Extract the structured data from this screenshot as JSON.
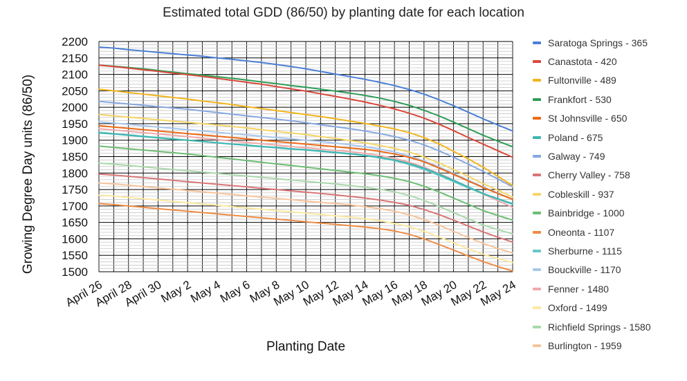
{
  "chart_data": {
    "type": "line",
    "title": "Estimated total GDD (86/50) by planting date for each location",
    "xlabel": "Planting Date",
    "ylabel": "Growing Degree Day units (86/50)",
    "ylim": [
      1500,
      2200
    ],
    "y_ticks": [
      1500,
      1550,
      1600,
      1650,
      1700,
      1750,
      1800,
      1850,
      1900,
      1950,
      2000,
      2050,
      2100,
      2150,
      2200
    ],
    "x": [
      "April 26",
      "April 27",
      "April 28",
      "April 29",
      "April 30",
      "May 1",
      "May 2",
      "May 3",
      "May 4",
      "May 5",
      "May 6",
      "May 7",
      "May 8",
      "May 9",
      "May 10",
      "May 11",
      "May 12",
      "May 13",
      "May 14",
      "May 15",
      "May 16",
      "May 17",
      "May 18",
      "May 19",
      "May 20",
      "May 21",
      "May 22",
      "May 23",
      "May 24"
    ],
    "x_tick_labels": [
      "April 26",
      "April 28",
      "April 30",
      "May 2",
      "May 4",
      "May 6",
      "May 8",
      "May 10",
      "May 12",
      "May 14",
      "May 16",
      "May 18",
      "May 20",
      "May 22",
      "May 24"
    ],
    "grid": true,
    "legend_position": "right",
    "series": [
      {
        "name": "Saratoga Springs - 365",
        "color": "#4a7fd6",
        "values": [
          2183,
          2180,
          2175,
          2171,
          2167,
          2163,
          2159,
          2155,
          2150,
          2146,
          2141,
          2136,
          2130,
          2124,
          2117,
          2109,
          2101,
          2093,
          2085,
          2076,
          2066,
          2054,
          2040,
          2023,
          2005,
          1985,
          1965,
          1946,
          1928
        ]
      },
      {
        "name": "Canastota - 420",
        "color": "#d9483b",
        "values": [
          2128,
          2124,
          2119,
          2114,
          2109,
          2104,
          2099,
          2094,
          2088,
          2082,
          2076,
          2070,
          2063,
          2056,
          2049,
          2041,
          2033,
          2025,
          2016,
          2006,
          1995,
          1982,
          1967,
          1949,
          1929,
          1908,
          1888,
          1868,
          1848
        ]
      },
      {
        "name": "Fultonville - 489",
        "color": "#f2b51c",
        "values": [
          2055,
          2050,
          2045,
          2040,
          2035,
          2030,
          2025,
          2019,
          2014,
          2008,
          2002,
          1996,
          1990,
          1984,
          1978,
          1972,
          1965,
          1958,
          1951,
          1943,
          1934,
          1923,
          1908,
          1889,
          1866,
          1843,
          1818,
          1790,
          1762
        ]
      },
      {
        "name": "Frankfort - 530",
        "color": "#2e9c56",
        "values": [
          2128,
          2125,
          2121,
          2117,
          2112,
          2107,
          2102,
          2098,
          2093,
          2088,
          2083,
          2077,
          2072,
          2066,
          2061,
          2055,
          2049,
          2043,
          2036,
          2028,
          2018,
          2006,
          1991,
          1974,
          1955,
          1935,
          1915,
          1897,
          1880
        ]
      },
      {
        "name": "St Johnsville - 650",
        "color": "#ec6a17",
        "values": [
          1944,
          1940,
          1936,
          1932,
          1928,
          1924,
          1920,
          1916,
          1912,
          1908,
          1904,
          1900,
          1896,
          1892,
          1888,
          1884,
          1880,
          1876,
          1872,
          1866,
          1858,
          1848,
          1834,
          1816,
          1796,
          1776,
          1756,
          1738,
          1720
        ]
      },
      {
        "name": "Poland - 675",
        "color": "#3db6b0",
        "values": [
          1922,
          1919,
          1915,
          1911,
          1907,
          1903,
          1900,
          1896,
          1892,
          1888,
          1885,
          1881,
          1878,
          1874,
          1871,
          1867,
          1863,
          1859,
          1854,
          1848,
          1840,
          1829,
          1815,
          1797,
          1778,
          1758,
          1738,
          1722,
          1707
        ]
      },
      {
        "name": "Galway - 749",
        "color": "#85a8e0",
        "values": [
          2018,
          2014,
          2010,
          2006,
          2002,
          1998,
          1994,
          1989,
          1984,
          1979,
          1974,
          1969,
          1964,
          1959,
          1953,
          1947,
          1941,
          1935,
          1928,
          1920,
          1911,
          1900,
          1886,
          1868,
          1848,
          1827,
          1805,
          1782,
          1758
        ]
      },
      {
        "name": "Cherry Valley - 758",
        "color": "#d97575",
        "values": [
          1797,
          1794,
          1790,
          1786,
          1782,
          1778,
          1774,
          1770,
          1766,
          1762,
          1758,
          1754,
          1750,
          1746,
          1742,
          1738,
          1734,
          1729,
          1724,
          1718,
          1711,
          1702,
          1689,
          1674,
          1657,
          1639,
          1621,
          1605,
          1590
        ]
      },
      {
        "name": "Cobleskill - 937",
        "color": "#f5d565",
        "values": [
          1978,
          1974,
          1970,
          1966,
          1962,
          1958,
          1954,
          1950,
          1946,
          1942,
          1937,
          1932,
          1927,
          1922,
          1917,
          1911,
          1905,
          1899,
          1892,
          1884,
          1875,
          1864,
          1849,
          1831,
          1811,
          1790,
          1768,
          1748,
          1727
        ]
      },
      {
        "name": "Bainbridge - 1000",
        "color": "#6cbd73",
        "values": [
          1882,
          1878,
          1874,
          1870,
          1866,
          1862,
          1858,
          1853,
          1848,
          1843,
          1838,
          1833,
          1828,
          1823,
          1818,
          1813,
          1808,
          1803,
          1798,
          1792,
          1784,
          1774,
          1760,
          1743,
          1724,
          1705,
          1686,
          1671,
          1657
        ]
      },
      {
        "name": "Oneonta - 1107",
        "color": "#ef8c45",
        "values": [
          1707,
          1704,
          1700,
          1696,
          1692,
          1688,
          1684,
          1680,
          1676,
          1672,
          1668,
          1664,
          1660,
          1656,
          1652,
          1648,
          1644,
          1640,
          1636,
          1631,
          1624,
          1614,
          1600,
          1583,
          1566,
          1548,
          1531,
          1516,
          1502
        ]
      },
      {
        "name": "Sherburne - 1115",
        "color": "#68c6c7",
        "values": [
          1924,
          1920,
          1916,
          1912,
          1908,
          1904,
          1900,
          1896,
          1892,
          1888,
          1884,
          1880,
          1877,
          1873,
          1870,
          1866,
          1862,
          1858,
          1853,
          1846,
          1838,
          1826,
          1811,
          1793,
          1774,
          1755,
          1737,
          1721,
          1705
        ]
      },
      {
        "name": "Bouckville - 1170",
        "color": "#a9c7ec",
        "values": [
          1956,
          1952,
          1948,
          1944,
          1940,
          1936,
          1932,
          1928,
          1924,
          1920,
          1916,
          1912,
          1908,
          1904,
          1900,
          1896,
          1891,
          1886,
          1880,
          1873,
          1864,
          1852,
          1837,
          1819,
          1799,
          1778,
          1758,
          1739,
          1721
        ]
      },
      {
        "name": "Fenner - 1480",
        "color": "#f0aaaa",
        "values": [
          1935,
          1931,
          1927,
          1923,
          1919,
          1915,
          1911,
          1906,
          1902,
          1897,
          1893,
          1889,
          1885,
          1881,
          1877,
          1873,
          1869,
          1865,
          1860,
          1853,
          1845,
          1833,
          1818,
          1799,
          1779,
          1757,
          1736,
          1716,
          1696
        ]
      },
      {
        "name": "Oxford - 1499",
        "color": "#fbe9a0",
        "values": [
          1733,
          1730,
          1726,
          1722,
          1718,
          1714,
          1710,
          1706,
          1702,
          1698,
          1694,
          1690,
          1686,
          1682,
          1678,
          1674,
          1670,
          1666,
          1661,
          1655,
          1647,
          1637,
          1623,
          1606,
          1588,
          1570,
          1553,
          1540,
          1528
        ]
      },
      {
        "name": "Richfield Springs - 1580",
        "color": "#a8d8aa",
        "values": [
          1830,
          1827,
          1823,
          1819,
          1815,
          1811,
          1807,
          1803,
          1799,
          1795,
          1791,
          1787,
          1783,
          1779,
          1775,
          1771,
          1767,
          1762,
          1757,
          1751,
          1743,
          1732,
          1717,
          1699,
          1680,
          1661,
          1642,
          1628,
          1615
        ]
      },
      {
        "name": "Burlington - 1959",
        "color": "#f6c39a",
        "values": [
          1770,
          1767,
          1763,
          1759,
          1755,
          1751,
          1747,
          1743,
          1739,
          1735,
          1731,
          1727,
          1723,
          1719,
          1715,
          1711,
          1707,
          1703,
          1698,
          1692,
          1684,
          1673,
          1659,
          1642,
          1623,
          1604,
          1586,
          1571,
          1557
        ]
      }
    ]
  }
}
